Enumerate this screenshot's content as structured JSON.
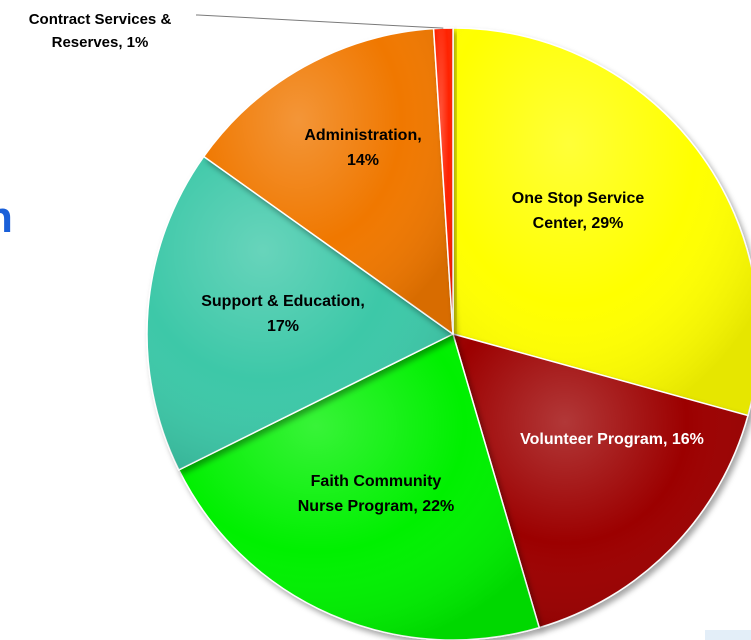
{
  "chart_data": {
    "type": "pie",
    "title": "",
    "start_angle_deg": 0,
    "direction": "clockwise",
    "slices": [
      {
        "label_lines": [
          "One Stop Service",
          "Center, 29%"
        ],
        "category": "One Stop Service Center",
        "value": 29,
        "color": "#ffff00",
        "label_color": "#000000"
      },
      {
        "label_lines": [
          "Volunteer Program, 16%"
        ],
        "category": "Volunteer Program",
        "value": 16,
        "color": "#9c0000",
        "label_color": "#ffffff"
      },
      {
        "label_lines": [
          "Faith Community",
          "Nurse Program, 22%"
        ],
        "category": "Faith Community Nurse Program",
        "value": 22,
        "color": "#00f000",
        "label_color": "#000000"
      },
      {
        "label_lines": [
          "Support & Education,",
          "17%"
        ],
        "category": "Support & Education",
        "value": 17,
        "color": "#3cc8a8",
        "label_color": "#000000"
      },
      {
        "label_lines": [
          "Administration,",
          "14%"
        ],
        "category": "Administration",
        "value": 14,
        "color": "#f07800",
        "label_color": "#000000"
      },
      {
        "label_lines": [
          "Contract Services &",
          "Reserves, 1%"
        ],
        "category": "Contract Services & Reserves",
        "value": 1,
        "color": "#ff2000",
        "label_color": "#000000",
        "label_outside": true
      }
    ]
  },
  "page": {
    "cropped_heading_glyph": "n"
  }
}
